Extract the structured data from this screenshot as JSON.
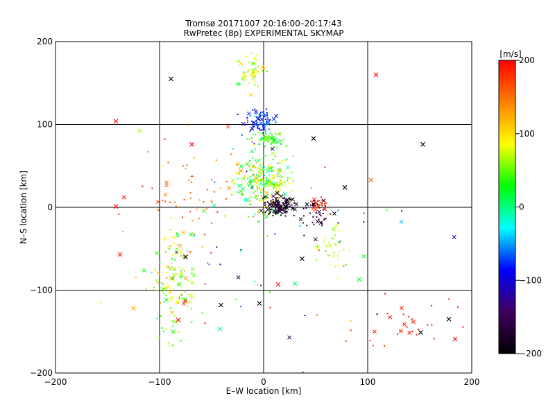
{
  "chart_data": {
    "type": "scatter",
    "title": "Tromsø 20171007 20:16:00–20:17:43",
    "subtitle": "RwPretec (8p) EXPERIMENTAL SKYMAP",
    "xlabel": "E–W location [km]",
    "ylabel": "N–S location [km]",
    "xlim": [
      -200,
      200
    ],
    "ylim": [
      -200,
      200
    ],
    "x_ticks": [
      "−200",
      "−100",
      "0",
      "100",
      "200"
    ],
    "y_ticks": [
      "−200",
      "−100",
      "0",
      "100",
      "200"
    ],
    "x_tick_values": [
      -200,
      -100,
      0,
      100,
      200
    ],
    "y_tick_values": [
      -200,
      -100,
      0,
      100,
      200
    ],
    "grid_values_x": [
      -100,
      0,
      100
    ],
    "grid_values_y": [
      -100,
      0,
      100
    ],
    "colorbar": {
      "label": "[m/s]",
      "range": [
        -200,
        200
      ],
      "ticks": [
        "200",
        "100",
        "0",
        "−100",
        "−200"
      ],
      "tick_values": [
        200,
        100,
        0,
        -100,
        -200
      ],
      "stops": [
        "#ff0000",
        "#ff8000",
        "#ffff00",
        "#00ff00",
        "#00ffff",
        "#0000ff",
        "#400060",
        "#000000"
      ]
    },
    "clusters": [
      {
        "name": "central",
        "x": 0,
        "y": 30,
        "sx": 14,
        "sy": 18,
        "n": 260,
        "v": [
          -20,
          120
        ]
      },
      {
        "name": "north-blue",
        "x": -5,
        "y": 105,
        "sx": 7,
        "sy": 7,
        "n": 90,
        "v": [
          -110,
          -40
        ]
      },
      {
        "name": "upper-green",
        "x": 3,
        "y": 82,
        "sx": 8,
        "sy": 5,
        "n": 60,
        "v": [
          0,
          60
        ]
      },
      {
        "name": "top-green",
        "x": -12,
        "y": 165,
        "sx": 9,
        "sy": 10,
        "n": 50,
        "v": [
          20,
          110
        ]
      },
      {
        "name": "dark-core",
        "x": 15,
        "y": 3,
        "sx": 7,
        "sy": 6,
        "n": 130,
        "v": [
          -200,
          -150
        ]
      },
      {
        "name": "red-east",
        "x": 52,
        "y": 3,
        "sx": 4,
        "sy": 4,
        "n": 30,
        "v": [
          170,
          200
        ]
      },
      {
        "name": "southwest-arm",
        "x": -85,
        "y": -90,
        "sx": 10,
        "sy": 35,
        "n": 130,
        "v": [
          20,
          130
        ]
      },
      {
        "name": "east-green",
        "x": 65,
        "y": -50,
        "sx": 6,
        "sy": 15,
        "n": 35,
        "v": [
          40,
          100
        ]
      },
      {
        "name": "dark-east",
        "x": 50,
        "y": -10,
        "sx": 8,
        "sy": 12,
        "n": 40,
        "v": [
          -200,
          -150
        ]
      },
      {
        "name": "scatter-west",
        "x": -60,
        "y": 10,
        "sx": 30,
        "sy": 30,
        "n": 60,
        "v": [
          120,
          200
        ]
      },
      {
        "name": "southeast-tail",
        "x": 140,
        "y": -145,
        "sx": 25,
        "sy": 18,
        "n": 30,
        "v": [
          170,
          200
        ]
      },
      {
        "name": "sparse",
        "x": 0,
        "y": -40,
        "sx": 70,
        "sy": 60,
        "n": 60,
        "v": [
          -200,
          200
        ]
      }
    ],
    "crosses": [
      {
        "x": -89,
        "y": 155,
        "v": -200
      },
      {
        "x": 108,
        "y": 160,
        "v": 200
      },
      {
        "x": -142,
        "y": 104,
        "v": 200
      },
      {
        "x": 153,
        "y": 76,
        "v": -200
      },
      {
        "x": 48,
        "y": 83,
        "v": -200
      },
      {
        "x": 78,
        "y": 24,
        "v": -200
      },
      {
        "x": 103,
        "y": 33,
        "v": 150
      },
      {
        "x": -142,
        "y": 1,
        "v": 200
      },
      {
        "x": -138,
        "y": -57,
        "v": 200
      },
      {
        "x": -125,
        "y": -122,
        "v": 130
      },
      {
        "x": -41,
        "y": -118,
        "v": -200
      },
      {
        "x": -4,
        "y": -116,
        "v": -200
      },
      {
        "x": -42,
        "y": -147,
        "v": 0
      },
      {
        "x": 14,
        "y": -93,
        "v": 200
      },
      {
        "x": 37,
        "y": -62,
        "v": -200
      },
      {
        "x": 30,
        "y": -92,
        "v": 0
      },
      {
        "x": 178,
        "y": -135,
        "v": -200
      },
      {
        "x": 151,
        "y": -151,
        "v": -200
      },
      {
        "x": 184,
        "y": -159,
        "v": 200
      },
      {
        "x": -69,
        "y": 76,
        "v": 200
      },
      {
        "x": -75,
        "y": -60,
        "v": -200
      },
      {
        "x": -82,
        "y": -136,
        "v": 200
      },
      {
        "x": 92,
        "y": -87,
        "v": 20
      }
    ]
  }
}
